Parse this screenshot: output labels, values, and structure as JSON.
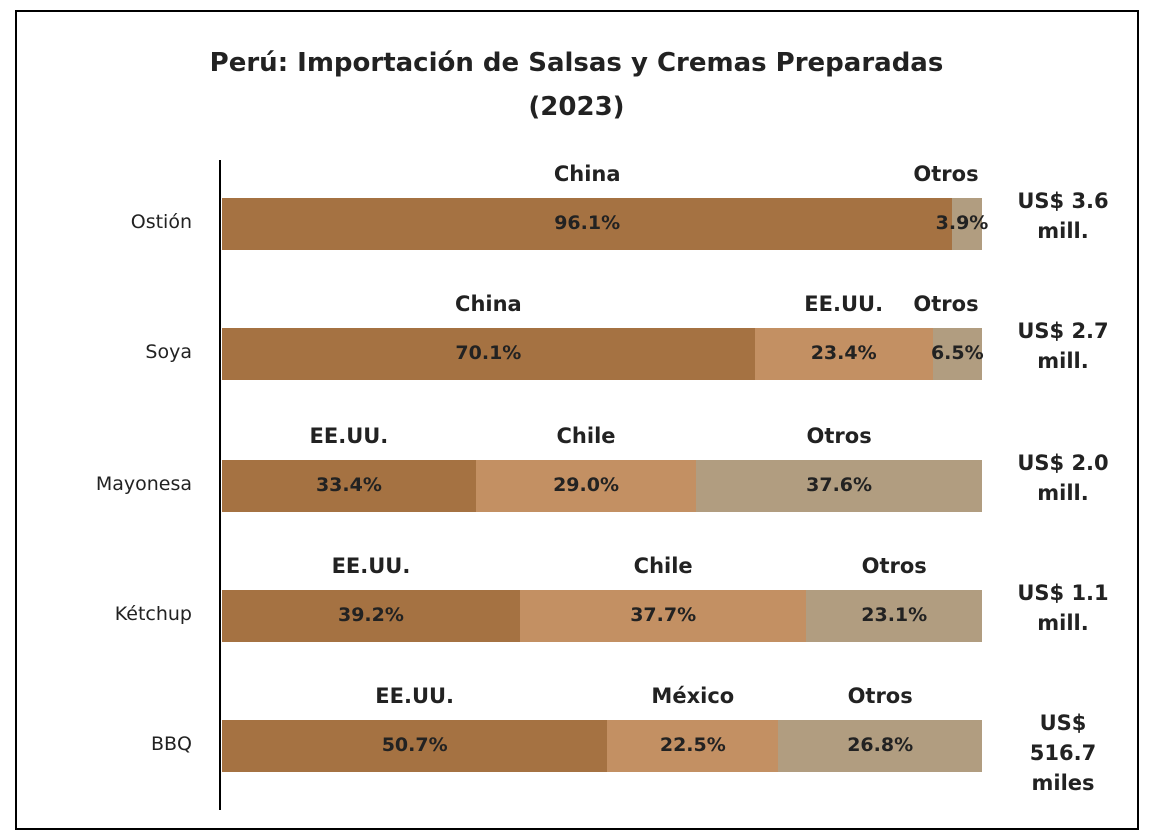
{
  "chart_data": {
    "type": "stacked_bar_horizontal",
    "title": "Perú: Importación de Salsas y Cremas Preparadas",
    "subtitle": "(2023)",
    "categories": [
      "Ostión",
      "Soya",
      "Mayonesa",
      "Kétchup",
      "BBQ"
    ],
    "rows": [
      {
        "names": [
          "China",
          "Otros"
        ],
        "values": [
          96.1,
          3.9
        ],
        "value_labels": [
          "96.1%",
          "3.9%"
        ],
        "colors": [
          "#a57242",
          "#b19d80"
        ],
        "total": "US$ 3.6 mill."
      },
      {
        "names": [
          "China",
          "EE.UU.",
          "Otros"
        ],
        "values": [
          70.1,
          23.4,
          6.5
        ],
        "value_labels": [
          "70.1%",
          "23.4%",
          "6.5%"
        ],
        "colors": [
          "#a57242",
          "#c39063",
          "#b19d80"
        ],
        "total": "US$ 2.7 mill."
      },
      {
        "names": [
          "EE.UU.",
          "Chile",
          "Otros"
        ],
        "values": [
          33.4,
          29.0,
          37.6
        ],
        "value_labels": [
          "33.4%",
          "29.0%",
          "37.6%"
        ],
        "colors": [
          "#a57242",
          "#c39063",
          "#b19d80"
        ],
        "total": "US$ 2.0 mill."
      },
      {
        "names": [
          "EE.UU.",
          "Chile",
          "Otros"
        ],
        "values": [
          39.2,
          37.7,
          23.1
        ],
        "value_labels": [
          "39.2%",
          "37.7%",
          "23.1%"
        ],
        "colors": [
          "#a57242",
          "#c39063",
          "#b19d80"
        ],
        "total": "US$ 1.1 mill."
      },
      {
        "names": [
          "EE.UU.",
          "México",
          "Otros"
        ],
        "values": [
          50.7,
          22.5,
          26.8
        ],
        "value_labels": [
          "50.7%",
          "22.5%",
          "26.8%"
        ],
        "colors": [
          "#a57242",
          "#c39063",
          "#b19d80"
        ],
        "total": "US$ 516.7 miles"
      }
    ]
  }
}
